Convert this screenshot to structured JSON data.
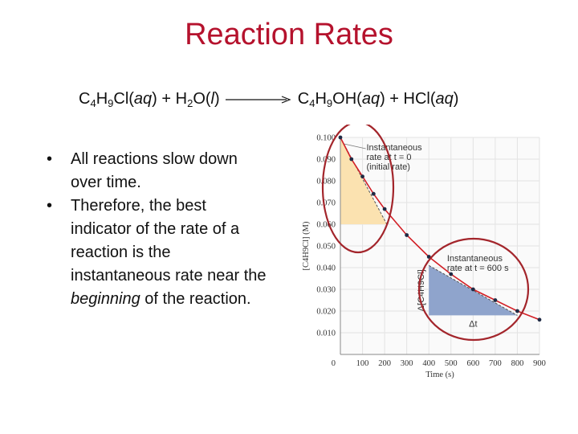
{
  "slide": {
    "title": "Reaction Rates",
    "equation": {
      "reactants": [
        "C",
        "4",
        "H",
        "9",
        "Cl(",
        "aq",
        ") + H",
        "2",
        "O(",
        "l",
        ")"
      ],
      "products": [
        "C",
        "4",
        "H",
        "9",
        "OH(",
        "aq",
        ") + HCl(",
        "aq",
        ")"
      ]
    },
    "bullets": [
      {
        "marker": "•",
        "parts": [
          "All reactions slow down over time."
        ]
      },
      {
        "marker": "•",
        "parts": [
          "Therefore, the best indicator of the rate of a reaction is the instantaneous rate near the ",
          "beginning",
          " of the reaction."
        ]
      }
    ]
  },
  "colors": {
    "title": "#b5122d",
    "curve": "#d21f26",
    "highlight_circle": "#a3252b",
    "initial_triangle": "#fbe2b0",
    "later_triangle": "#8fa4cc",
    "points": "#1f2a44",
    "grid": "#e3e3e3"
  },
  "chart_data": {
    "type": "line",
    "xlabel": "Time (s)",
    "ylabel": "[C4H9Cl] (M)",
    "xlim": [
      0,
      900
    ],
    "ylim": [
      0,
      0.1
    ],
    "x_ticks": [
      "0",
      "100",
      "200",
      "300",
      "400",
      "500",
      "600",
      "700",
      "800",
      "900"
    ],
    "y_ticks": [
      "0.010",
      "0.020",
      "0.030",
      "0.040",
      "0.050",
      "0.060",
      "0.070",
      "0.080",
      "0.090",
      "0.100"
    ],
    "grid": true,
    "series": [
      {
        "x": [
          0,
          50,
          100,
          150,
          200,
          300,
          400,
          500,
          600,
          700,
          800,
          900
        ],
        "y": [
          0.1,
          0.09,
          0.082,
          0.074,
          0.067,
          0.055,
          0.045,
          0.037,
          0.03,
          0.025,
          0.02,
          0.016
        ]
      }
    ],
    "tangents": [
      {
        "label_lines": [
          "Instantaneous",
          "rate at t = 0",
          "(initial rate)"
        ],
        "x": [
          0,
          210
        ],
        "y": [
          0.1,
          0.06
        ]
      },
      {
        "label_lines": [
          "Instantaneous",
          "rate at t = 600 s"
        ],
        "x": [
          400,
          800
        ],
        "y": [
          0.041,
          0.018
        ]
      }
    ],
    "triangle_labels": [
      {
        "text": "Δ[C4H9Cl]"
      },
      {
        "text": "Δt"
      }
    ]
  }
}
